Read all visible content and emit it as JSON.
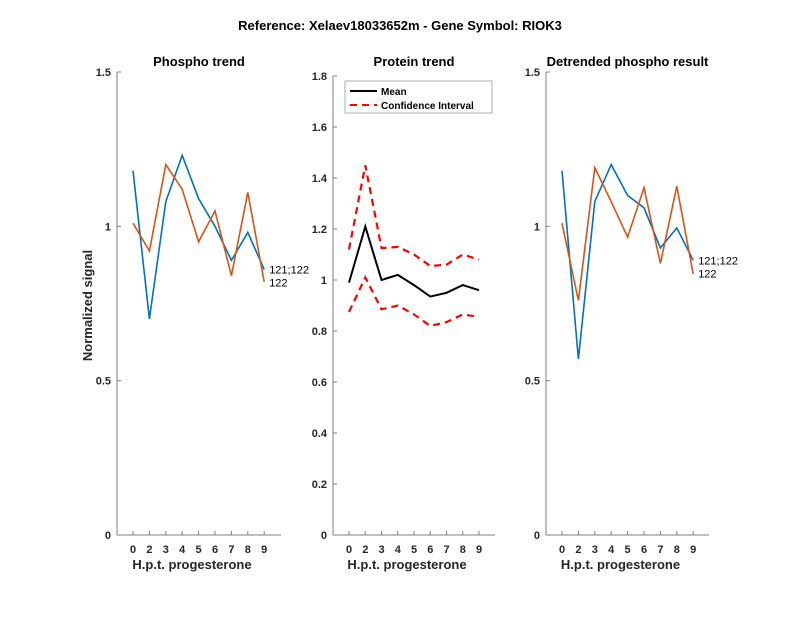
{
  "suptitle": "Reference:  Xelaev18033652m - Gene Symbol:  RIOK3",
  "colors": {
    "series_blue": "#0072BD",
    "series_orange": "#D95319",
    "mean": "#000000",
    "ci": "#FF0000",
    "axis": "#808080"
  },
  "chart_data": [
    {
      "type": "line",
      "title": "Phospho trend",
      "xlabel": "H.p.t. progesterone",
      "ylabel": "Normalized signal",
      "categories": [
        "0",
        "2",
        "3",
        "4",
        "5",
        "6",
        "7",
        "8",
        "9"
      ],
      "ylim": [
        0,
        1.5
      ],
      "yticks": [
        "0",
        "0.5",
        "1",
        "1.5"
      ],
      "ytick_values": [
        0,
        0.5,
        1,
        1.5
      ],
      "series": [
        {
          "name": "121;122",
          "color": "blue",
          "values": [
            1.18,
            0.7,
            1.08,
            1.23,
            1.09,
            1.0,
            0.89,
            0.98,
            0.86
          ]
        },
        {
          "name": "122",
          "color": "orange",
          "values": [
            1.01,
            0.92,
            1.2,
            1.12,
            0.95,
            1.05,
            0.84,
            1.11,
            0.82
          ]
        }
      ],
      "annotations": [
        "121;122",
        "122"
      ]
    },
    {
      "type": "line",
      "title": "Protein trend",
      "xlabel": "H.p.t. progesterone",
      "ylabel": "",
      "categories": [
        "0",
        "2",
        "3",
        "4",
        "5",
        "6",
        "7",
        "8",
        "9"
      ],
      "ylim": [
        0,
        1.8
      ],
      "yticks": [
        "0",
        "0.2",
        "0.4",
        "0.6",
        "0.8",
        "1",
        "1.2",
        "1.4",
        "1.6",
        "1.8"
      ],
      "ytick_values": [
        0,
        0.2,
        0.4,
        0.6,
        0.8,
        1.0,
        1.2,
        1.4,
        1.6,
        1.8
      ],
      "legend": {
        "position": "top-left",
        "entries": [
          "Mean",
          "Confidence Interval"
        ]
      },
      "series": [
        {
          "name": "Mean",
          "style": "solid",
          "values": [
            0.99,
            1.21,
            1.0,
            1.02,
            0.98,
            0.935,
            0.95,
            0.98,
            0.96
          ]
        },
        {
          "name": "Confidence Interval (upper)",
          "style": "dashed",
          "values": [
            1.12,
            1.45,
            1.125,
            1.13,
            1.1,
            1.055,
            1.06,
            1.1,
            1.08
          ]
        },
        {
          "name": "Confidence Interval (lower)",
          "style": "dashed",
          "values": [
            0.875,
            1.01,
            0.885,
            0.9,
            0.865,
            0.82,
            0.835,
            0.865,
            0.855
          ]
        }
      ]
    },
    {
      "type": "line",
      "title": "Detrended phospho result",
      "xlabel": "H.p.t. progesterone",
      "ylabel": "",
      "categories": [
        "0",
        "2",
        "3",
        "4",
        "5",
        "6",
        "7",
        "8",
        "9"
      ],
      "ylim": [
        0,
        1.5
      ],
      "yticks": [
        "0",
        "0.5",
        "1",
        "1.5"
      ],
      "ytick_values": [
        0,
        0.5,
        1,
        1.5
      ],
      "series": [
        {
          "name": "121;122",
          "color": "blue",
          "values": [
            1.18,
            0.57,
            1.08,
            1.2,
            1.1,
            1.06,
            0.93,
            0.995,
            0.89
          ]
        },
        {
          "name": "122",
          "color": "orange",
          "values": [
            1.01,
            0.76,
            1.19,
            1.08,
            0.965,
            1.125,
            0.88,
            1.13,
            0.845
          ]
        }
      ],
      "annotations": [
        "121;122",
        "122"
      ]
    }
  ]
}
